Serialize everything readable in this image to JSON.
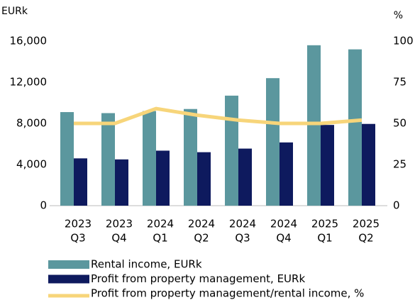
{
  "chart_data": {
    "type": "bar",
    "y_label": "EURk",
    "y2_label": "%",
    "categories": [
      [
        "2023",
        "Q3"
      ],
      [
        "2023",
        "Q4"
      ],
      [
        "2024",
        "Q1"
      ],
      [
        "2024",
        "Q2"
      ],
      [
        "2024",
        "Q3"
      ],
      [
        "2024",
        "Q4"
      ],
      [
        "2025",
        "Q1"
      ],
      [
        "2025",
        "Q2"
      ]
    ],
    "series": [
      {
        "name": "Rental income, EURk",
        "color": "#5b979e",
        "type": "bar",
        "values": [
          9100,
          9000,
          9200,
          9400,
          10700,
          12400,
          15600,
          15200
        ]
      },
      {
        "name": "Profit from property management, EURk",
        "color": "#0e1a5e",
        "type": "bar",
        "values": [
          4600,
          4500,
          5350,
          5200,
          5550,
          6150,
          7850,
          7950
        ]
      },
      {
        "name": "Profit from property management/rental income, %",
        "color": "#f7d57a",
        "type": "line",
        "axis": "y2",
        "values": [
          50,
          50,
          59,
          55,
          52,
          50,
          50,
          52
        ]
      }
    ],
    "ylim": [
      0,
      16000
    ],
    "yticks": [
      {
        "value": 0,
        "label": "0"
      },
      {
        "value": 4000,
        "label": "4,000"
      },
      {
        "value": 8000,
        "label": "8,000"
      },
      {
        "value": 12000,
        "label": "12,000"
      },
      {
        "value": 16000,
        "label": "16,000"
      }
    ],
    "y2lim": [
      0,
      100
    ],
    "y2ticks": [
      0,
      25,
      50,
      75,
      100
    ],
    "grid": false
  }
}
